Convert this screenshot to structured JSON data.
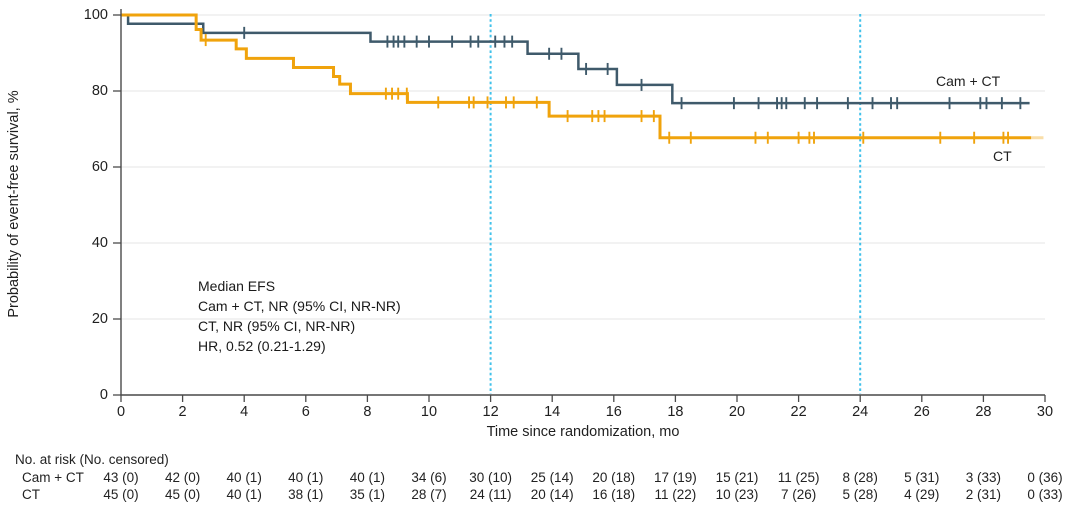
{
  "chart_data": {
    "type": "line",
    "subtype": "kaplan-meier-step",
    "title": "",
    "xlabel": "Time since randomization, mo",
    "ylabel": "Probability of event-free survival, %",
    "xlim": [
      0,
      30
    ],
    "ylim": [
      0,
      100
    ],
    "xticks": [
      0,
      2,
      4,
      6,
      8,
      10,
      12,
      14,
      16,
      18,
      20,
      22,
      24,
      26,
      28,
      30
    ],
    "yticks": [
      0,
      20,
      40,
      60,
      80,
      100
    ],
    "grid": "horizontal",
    "grid_color": "#ebebeb",
    "axis_color": "#4a4a4a",
    "reference_lines_x": [
      12,
      24
    ],
    "reference_line_color": "#41c1ea",
    "annotation": {
      "lines": [
        "Median EFS",
        "Cam + CT, NR (95% CI, NR-NR)",
        "CT, NR (95% CI, NR-NR)",
        "HR, 0.52 (0.21-1.29)"
      ]
    },
    "series": [
      {
        "name": "Cam + CT",
        "color": "#3f5a6b",
        "label": {
          "text": "Cam + CT"
        },
        "steps": [
          [
            0,
            100
          ],
          [
            0.23,
            97.7
          ],
          [
            2.67,
            95.3
          ],
          [
            8.1,
            93.0
          ],
          [
            13.2,
            89.8
          ],
          [
            14.85,
            85.8
          ],
          [
            16.1,
            81.6
          ],
          [
            17.9,
            76.8
          ]
        ],
        "end_x": 29.5,
        "censors": [
          [
            4.0,
            95.3
          ],
          [
            8.65,
            93.0
          ],
          [
            8.85,
            93.0
          ],
          [
            9.0,
            93.0
          ],
          [
            9.2,
            93.0
          ],
          [
            9.6,
            93.0
          ],
          [
            10.0,
            93.0
          ],
          [
            10.75,
            93.0
          ],
          [
            11.35,
            93.0
          ],
          [
            11.6,
            93.0
          ],
          [
            12.15,
            93.0
          ],
          [
            12.45,
            93.0
          ],
          [
            12.7,
            93.0
          ],
          [
            13.9,
            89.8
          ],
          [
            14.3,
            89.8
          ],
          [
            15.1,
            85.8
          ],
          [
            15.8,
            85.8
          ],
          [
            16.9,
            81.6
          ],
          [
            18.2,
            76.8
          ],
          [
            19.9,
            76.8
          ],
          [
            20.7,
            76.8
          ],
          [
            21.3,
            76.8
          ],
          [
            21.45,
            76.8
          ],
          [
            21.6,
            76.8
          ],
          [
            22.2,
            76.8
          ],
          [
            22.6,
            76.8
          ],
          [
            23.6,
            76.8
          ],
          [
            24.4,
            76.8
          ],
          [
            25.0,
            76.8
          ],
          [
            25.2,
            76.8
          ],
          [
            26.9,
            76.8
          ],
          [
            27.9,
            76.8
          ],
          [
            28.1,
            76.8
          ],
          [
            28.6,
            76.8
          ],
          [
            29.2,
            76.8
          ]
        ]
      },
      {
        "name": "CT",
        "color": "#f0a30c",
        "label": {
          "text": "CT"
        },
        "steps": [
          [
            0,
            100
          ],
          [
            2.44,
            96.2
          ],
          [
            2.6,
            93.4
          ],
          [
            3.74,
            91.1
          ],
          [
            4.07,
            88.6
          ],
          [
            5.6,
            86.2
          ],
          [
            6.9,
            83.8
          ],
          [
            7.1,
            81.8
          ],
          [
            7.45,
            79.3
          ],
          [
            9.3,
            77.0
          ],
          [
            13.9,
            73.4
          ],
          [
            17.5,
            67.7
          ]
        ],
        "end_x": 29.55,
        "faded_end_x": 29.95,
        "censors": [
          [
            2.75,
            93.4
          ],
          [
            8.6,
            79.3
          ],
          [
            8.8,
            79.3
          ],
          [
            9.0,
            79.3
          ],
          [
            9.28,
            79.3
          ],
          [
            10.3,
            77.0
          ],
          [
            11.3,
            77.0
          ],
          [
            11.45,
            77.0
          ],
          [
            11.9,
            77.0
          ],
          [
            12.5,
            77.0
          ],
          [
            12.75,
            77.0
          ],
          [
            13.5,
            77.0
          ],
          [
            14.5,
            73.4
          ],
          [
            15.3,
            73.4
          ],
          [
            15.5,
            73.4
          ],
          [
            15.7,
            73.4
          ],
          [
            16.9,
            73.4
          ],
          [
            17.3,
            73.4
          ],
          [
            17.8,
            67.7
          ],
          [
            18.5,
            67.7
          ],
          [
            20.6,
            67.7
          ],
          [
            21.0,
            67.7
          ],
          [
            22.0,
            67.7
          ],
          [
            22.35,
            67.7
          ],
          [
            22.5,
            67.7
          ],
          [
            24.1,
            67.7
          ],
          [
            26.6,
            67.7
          ],
          [
            27.7,
            67.7
          ],
          [
            28.65,
            67.7
          ],
          [
            28.8,
            67.7
          ]
        ]
      }
    ],
    "risk_table": {
      "header": "No. at risk (No. censored)",
      "time_points": [
        0,
        2,
        4,
        6,
        8,
        10,
        12,
        14,
        16,
        18,
        20,
        22,
        24,
        26,
        28,
        30
      ],
      "rows": [
        {
          "label": "Cam + CT",
          "values": [
            "43 (0)",
            "42 (0)",
            "40 (1)",
            "40 (1)",
            "40 (1)",
            "34 (6)",
            "30 (10)",
            "25 (14)",
            "20 (18)",
            "17 (19)",
            "15 (21)",
            "11 (25)",
            "8 (28)",
            "5 (31)",
            "3 (33)",
            "0 (36)"
          ]
        },
        {
          "label": "CT",
          "values": [
            "45 (0)",
            "45 (0)",
            "40 (1)",
            "38 (1)",
            "35 (1)",
            "28 (7)",
            "24 (11)",
            "20 (14)",
            "16 (18)",
            "11 (22)",
            "10 (23)",
            "7 (26)",
            "5 (28)",
            "4 (29)",
            "2 (31)",
            "0 (33)"
          ]
        }
      ]
    }
  }
}
